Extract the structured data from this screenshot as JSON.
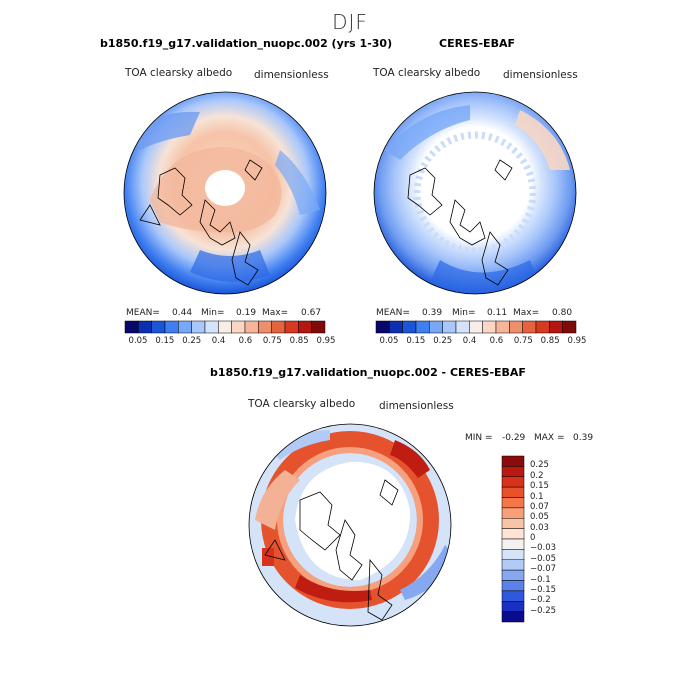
{
  "figure": {
    "season": "DJF"
  },
  "panel_model": {
    "title": "b1850.f19_g17.validation_nuopc.002 (yrs 1-30)",
    "variable": "TOA clearsky albedo",
    "units": "dimensionless",
    "mean_label": "MEAN=",
    "mean": "0.44",
    "min_label": "Min=",
    "min": "0.19",
    "max_label": "Max=",
    "max": "0.67"
  },
  "panel_obs": {
    "title": "CERES-EBAF",
    "variable": "TOA clearsky albedo",
    "units": "dimensionless",
    "mean_label": "MEAN=",
    "mean": "0.39",
    "min_label": "Min=",
    "min": "0.11",
    "max_label": "Max=",
    "max": "0.80"
  },
  "panel_diff": {
    "title": "b1850.f19_g17.validation_nuopc.002 - CERES-EBAF",
    "variable": "TOA clearsky albedo",
    "units": "dimensionless",
    "min_label": "MIN =",
    "min": "-0.29",
    "max_label": "MAX =",
    "max": "0.39"
  },
  "abs_colorbar": {
    "tick_labels": [
      "0.05",
      "0.15",
      "0.25",
      "0.4",
      "0.6",
      "0.75",
      "0.85",
      "0.95"
    ],
    "colors": [
      "#08086b",
      "#0b2fb0",
      "#1b55d8",
      "#3f7ff0",
      "#78a8f7",
      "#a9c7fb",
      "#d3e3fc",
      "#f7eee8",
      "#fbd6c3",
      "#f6b59a",
      "#ef8e6b",
      "#e5633f",
      "#d63a20",
      "#b51610",
      "#7e0a0a"
    ]
  },
  "diff_colorbar": {
    "tick_labels": [
      "0.25",
      "0.2",
      "0.15",
      "0.1",
      "0.07",
      "0.05",
      "0.03",
      "0",
      "−0.03",
      "−0.05",
      "−0.07",
      "−0.1",
      "−0.15",
      "−0.2",
      "−0.25"
    ],
    "colors": [
      "#8b0c0c",
      "#b81a12",
      "#d8321b",
      "#ea5128",
      "#f37748",
      "#f89e78",
      "#fbc3a6",
      "#fde4d5",
      "#f5f1ee",
      "#d4e3f8",
      "#b1cbf6",
      "#86a8f1",
      "#5a82ea",
      "#2f58dd",
      "#1a2fc4",
      "#0b0b8e"
    ]
  },
  "colors": {
    "land_outline": "#000000",
    "missing": "#ffffff"
  }
}
